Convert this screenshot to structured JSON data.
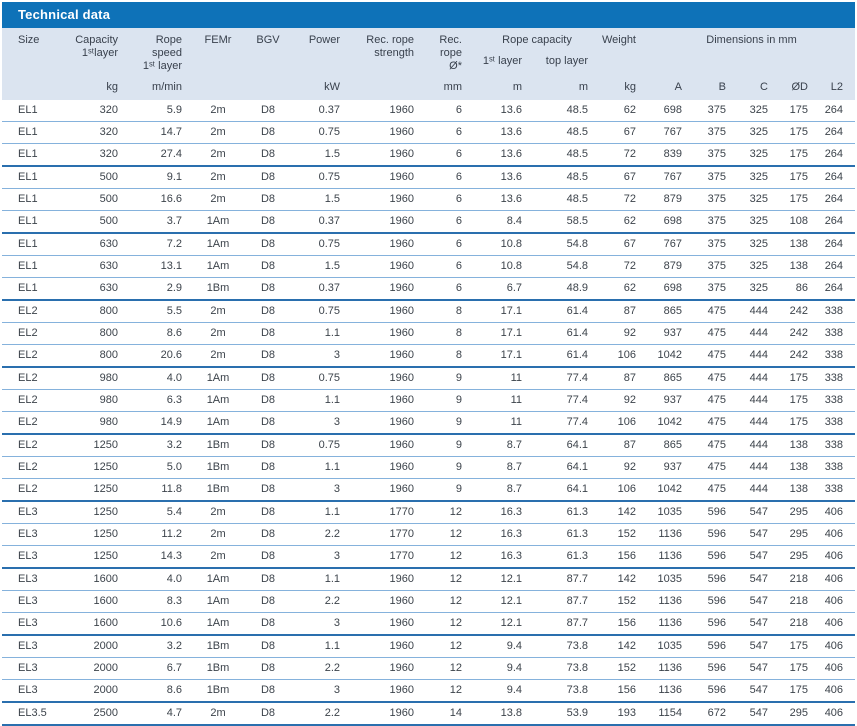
{
  "title": "Technical data",
  "colors": {
    "title_bar_bg": "#0e72b8",
    "title_text": "#ffffff",
    "header_band_bg": "#dbe4f0",
    "row_separator": "#85b2dc",
    "group_separator": "#2a6fae",
    "body_text": "#3c434b"
  },
  "table": {
    "header": {
      "size": "Size",
      "capacity": "Capacity\n1ˢᵗlayer",
      "rope_speed": "Rope speed\n1ˢᵗ layer",
      "femr": "FEMr",
      "bgv": "BGV",
      "power": "Power",
      "rec_rope_strength": "Rec. rope\nstrength",
      "rec_rope_dia": "Rec.\nrope Ø*",
      "rope_capacity": "Rope capacity",
      "rope_capacity_first": "1ˢᵗ layer",
      "rope_capacity_top": "top layer",
      "weight": "Weight",
      "dimensions": "Dimensions in mm"
    },
    "units": [
      "",
      "kg",
      "m/min",
      "",
      "",
      "kW",
      "",
      "mm",
      "m",
      "m",
      "kg",
      "A",
      "B",
      "C",
      "ØD",
      "L2"
    ],
    "column_keys": [
      "size",
      "capacity",
      "rope-speed",
      "femr",
      "bgv",
      "power",
      "rec-rope-strength",
      "rec-rope-dia",
      "rope-capacity-1st-layer",
      "rope-capacity-top-layer",
      "weight",
      "dim-a",
      "dim-b",
      "dim-c",
      "dim-od",
      "dim-l2"
    ],
    "column_align": [
      "al",
      "ar",
      "ar",
      "ac",
      "ac",
      "ar",
      "ar",
      "ar",
      "ar",
      "ar",
      "ar",
      "ar",
      "ar",
      "ar",
      "ar",
      "ar"
    ],
    "rows": [
      {
        "cells": [
          "EL1",
          "320",
          "5.9",
          "2m",
          "D8",
          "0.37",
          "1960",
          "6",
          "13.6",
          "48.5",
          "62",
          "698",
          "375",
          "325",
          "175",
          "264"
        ],
        "group_end": false
      },
      {
        "cells": [
          "EL1",
          "320",
          "14.7",
          "2m",
          "D8",
          "0.75",
          "1960",
          "6",
          "13.6",
          "48.5",
          "67",
          "767",
          "375",
          "325",
          "175",
          "264"
        ],
        "group_end": false
      },
      {
        "cells": [
          "EL1",
          "320",
          "27.4",
          "2m",
          "D8",
          "1.5",
          "1960",
          "6",
          "13.6",
          "48.5",
          "72",
          "839",
          "375",
          "325",
          "175",
          "264"
        ],
        "group_end": true
      },
      {
        "cells": [
          "EL1",
          "500",
          "9.1",
          "2m",
          "D8",
          "0.75",
          "1960",
          "6",
          "13.6",
          "48.5",
          "67",
          "767",
          "375",
          "325",
          "175",
          "264"
        ],
        "group_end": false
      },
      {
        "cells": [
          "EL1",
          "500",
          "16.6",
          "2m",
          "D8",
          "1.5",
          "1960",
          "6",
          "13.6",
          "48.5",
          "72",
          "879",
          "375",
          "325",
          "175",
          "264"
        ],
        "group_end": false
      },
      {
        "cells": [
          "EL1",
          "500",
          "3.7",
          "1Am",
          "D8",
          "0.37",
          "1960",
          "6",
          "8.4",
          "58.5",
          "62",
          "698",
          "375",
          "325",
          "108",
          "264"
        ],
        "group_end": true
      },
      {
        "cells": [
          "EL1",
          "630",
          "7.2",
          "1Am",
          "D8",
          "0.75",
          "1960",
          "6",
          "10.8",
          "54.8",
          "67",
          "767",
          "375",
          "325",
          "138",
          "264"
        ],
        "group_end": false
      },
      {
        "cells": [
          "EL1",
          "630",
          "13.1",
          "1Am",
          "D8",
          "1.5",
          "1960",
          "6",
          "10.8",
          "54.8",
          "72",
          "879",
          "375",
          "325",
          "138",
          "264"
        ],
        "group_end": false
      },
      {
        "cells": [
          "EL1",
          "630",
          "2.9",
          "1Bm",
          "D8",
          "0.37",
          "1960",
          "6",
          "6.7",
          "48.9",
          "62",
          "698",
          "375",
          "325",
          "86",
          "264"
        ],
        "group_end": true
      },
      {
        "cells": [
          "EL2",
          "800",
          "5.5",
          "2m",
          "D8",
          "0.75",
          "1960",
          "8",
          "17.1",
          "61.4",
          "87",
          "865",
          "475",
          "444",
          "242",
          "338"
        ],
        "group_end": false
      },
      {
        "cells": [
          "EL2",
          "800",
          "8.6",
          "2m",
          "D8",
          "1.1",
          "1960",
          "8",
          "17.1",
          "61.4",
          "92",
          "937",
          "475",
          "444",
          "242",
          "338"
        ],
        "group_end": false
      },
      {
        "cells": [
          "EL2",
          "800",
          "20.6",
          "2m",
          "D8",
          "3",
          "1960",
          "8",
          "17.1",
          "61.4",
          "106",
          "1042",
          "475",
          "444",
          "242",
          "338"
        ],
        "group_end": true
      },
      {
        "cells": [
          "EL2",
          "980",
          "4.0",
          "1Am",
          "D8",
          "0.75",
          "1960",
          "9",
          "11",
          "77.4",
          "87",
          "865",
          "475",
          "444",
          "175",
          "338"
        ],
        "group_end": false
      },
      {
        "cells": [
          "EL2",
          "980",
          "6.3",
          "1Am",
          "D8",
          "1.1",
          "1960",
          "9",
          "11",
          "77.4",
          "92",
          "937",
          "475",
          "444",
          "175",
          "338"
        ],
        "group_end": false
      },
      {
        "cells": [
          "EL2",
          "980",
          "14.9",
          "1Am",
          "D8",
          "3",
          "1960",
          "9",
          "11",
          "77.4",
          "106",
          "1042",
          "475",
          "444",
          "175",
          "338"
        ],
        "group_end": true
      },
      {
        "cells": [
          "EL2",
          "1250",
          "3.2",
          "1Bm",
          "D8",
          "0.75",
          "1960",
          "9",
          "8.7",
          "64.1",
          "87",
          "865",
          "475",
          "444",
          "138",
          "338"
        ],
        "group_end": false
      },
      {
        "cells": [
          "EL2",
          "1250",
          "5.0",
          "1Bm",
          "D8",
          "1.1",
          "1960",
          "9",
          "8.7",
          "64.1",
          "92",
          "937",
          "475",
          "444",
          "138",
          "338"
        ],
        "group_end": false
      },
      {
        "cells": [
          "EL2",
          "1250",
          "11.8",
          "1Bm",
          "D8",
          "3",
          "1960",
          "9",
          "8.7",
          "64.1",
          "106",
          "1042",
          "475",
          "444",
          "138",
          "338"
        ],
        "group_end": true
      },
      {
        "cells": [
          "EL3",
          "1250",
          "5.4",
          "2m",
          "D8",
          "1.1",
          "1770",
          "12",
          "16.3",
          "61.3",
          "142",
          "1035",
          "596",
          "547",
          "295",
          "406"
        ],
        "group_end": false
      },
      {
        "cells": [
          "EL3",
          "1250",
          "11.2",
          "2m",
          "D8",
          "2.2",
          "1770",
          "12",
          "16.3",
          "61.3",
          "152",
          "1136",
          "596",
          "547",
          "295",
          "406"
        ],
        "group_end": false
      },
      {
        "cells": [
          "EL3",
          "1250",
          "14.3",
          "2m",
          "D8",
          "3",
          "1770",
          "12",
          "16.3",
          "61.3",
          "156",
          "1136",
          "596",
          "547",
          "295",
          "406"
        ],
        "group_end": true
      },
      {
        "cells": [
          "EL3",
          "1600",
          "4.0",
          "1Am",
          "D8",
          "1.1",
          "1960",
          "12",
          "12.1",
          "87.7",
          "142",
          "1035",
          "596",
          "547",
          "218",
          "406"
        ],
        "group_end": false
      },
      {
        "cells": [
          "EL3",
          "1600",
          "8.3",
          "1Am",
          "D8",
          "2.2",
          "1960",
          "12",
          "12.1",
          "87.7",
          "152",
          "1136",
          "596",
          "547",
          "218",
          "406"
        ],
        "group_end": false
      },
      {
        "cells": [
          "EL3",
          "1600",
          "10.6",
          "1Am",
          "D8",
          "3",
          "1960",
          "12",
          "12.1",
          "87.7",
          "156",
          "1136",
          "596",
          "547",
          "218",
          "406"
        ],
        "group_end": true
      },
      {
        "cells": [
          "EL3",
          "2000",
          "3.2",
          "1Bm",
          "D8",
          "1.1",
          "1960",
          "12",
          "9.4",
          "73.8",
          "142",
          "1035",
          "596",
          "547",
          "175",
          "406"
        ],
        "group_end": false
      },
      {
        "cells": [
          "EL3",
          "2000",
          "6.7",
          "1Bm",
          "D8",
          "2.2",
          "1960",
          "12",
          "9.4",
          "73.8",
          "152",
          "1136",
          "596",
          "547",
          "175",
          "406"
        ],
        "group_end": false
      },
      {
        "cells": [
          "EL3",
          "2000",
          "8.6",
          "1Bm",
          "D8",
          "3",
          "1960",
          "12",
          "9.4",
          "73.8",
          "156",
          "1136",
          "596",
          "547",
          "175",
          "406"
        ],
        "group_end": true
      },
      {
        "cells": [
          "EL3.5",
          "2500",
          "4.7",
          "2m",
          "D8",
          "2.2",
          "1960",
          "14",
          "13.8",
          "53.9",
          "193",
          "1154",
          "672",
          "547",
          "295",
          "406"
        ],
        "group_end": true
      }
    ]
  }
}
